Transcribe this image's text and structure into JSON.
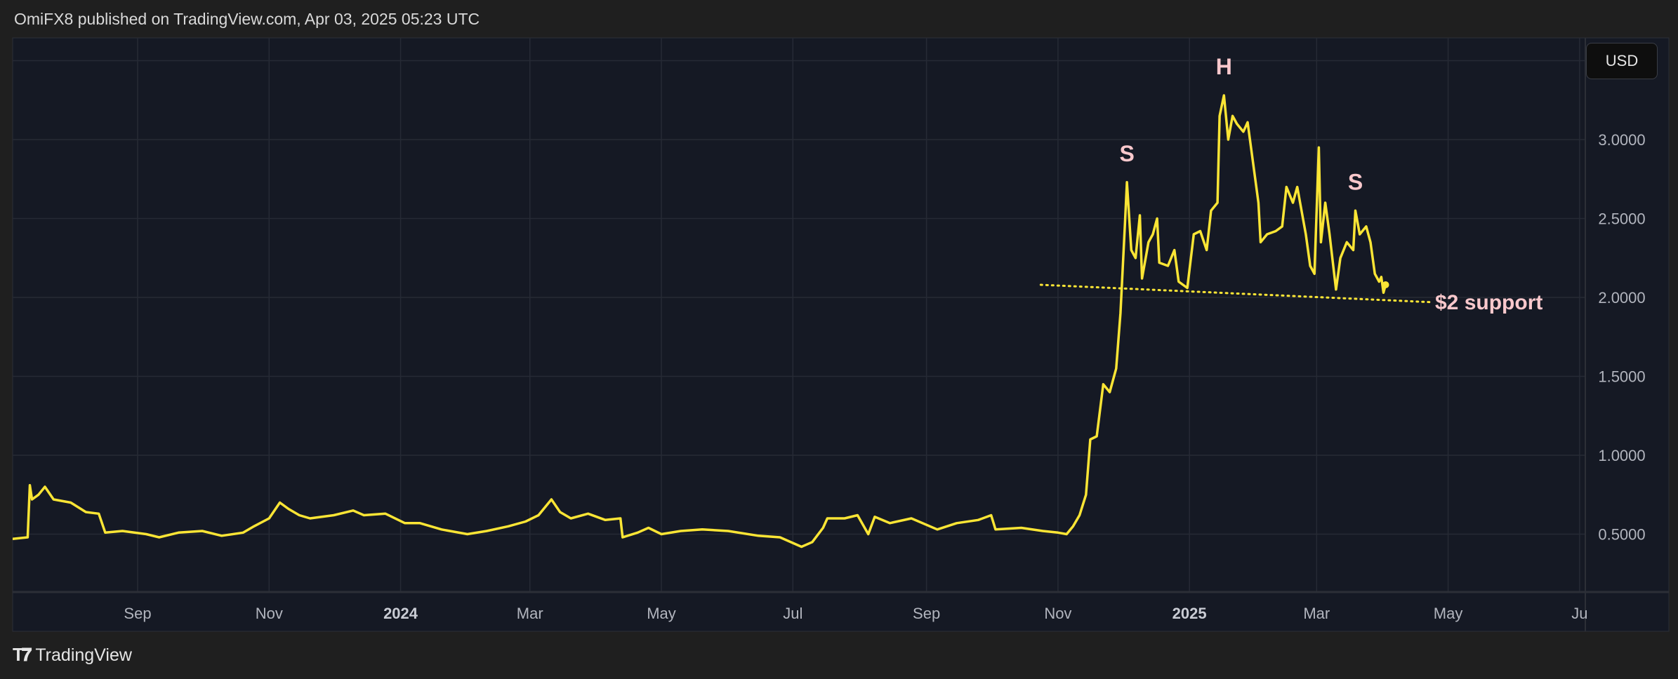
{
  "header": {
    "published": "OmiFX8 published on TradingView.com, Apr 03, 2025 05:23 UTC"
  },
  "currency_button": "USD",
  "footer": {
    "logo_mark": "TV",
    "brand": "TradingView"
  },
  "colors": {
    "line": "#fbe535",
    "annotation": "#f9c8cc",
    "background": "#151924",
    "grid": "#262a35"
  },
  "chart_data": {
    "type": "line",
    "title": "",
    "xlabel": "",
    "ylabel": "",
    "ylim": [
      0.15,
      3.5
    ],
    "y_ticks": [
      "3.0000",
      "2.5000",
      "2.0000",
      "1.5000",
      "1.0000",
      "0.5000"
    ],
    "y_tick_values": [
      3.0,
      2.5,
      2.0,
      1.5,
      1.0,
      0.5
    ],
    "x_ticks": [
      {
        "date": "2023-09-01",
        "label": "Sep",
        "bold": false
      },
      {
        "date": "2023-11-01",
        "label": "Nov",
        "bold": false
      },
      {
        "date": "2024-01-01",
        "label": "2024",
        "bold": true
      },
      {
        "date": "2024-03-01",
        "label": "Mar",
        "bold": false
      },
      {
        "date": "2024-05-01",
        "label": "May",
        "bold": false
      },
      {
        "date": "2024-07-01",
        "label": "Jul",
        "bold": false
      },
      {
        "date": "2024-09-01",
        "label": "Sep",
        "bold": false
      },
      {
        "date": "2024-11-01",
        "label": "Nov",
        "bold": false
      },
      {
        "date": "2025-01-01",
        "label": "2025",
        "bold": true
      },
      {
        "date": "2025-03-01",
        "label": "Mar",
        "bold": false
      },
      {
        "date": "2025-05-01",
        "label": "May",
        "bold": false
      },
      {
        "date": "2025-07-01",
        "label": "Ju",
        "bold": false
      }
    ],
    "grid": true,
    "series": [
      {
        "points": [
          [
            "2023-07-05",
            0.47
          ],
          [
            "2023-07-12",
            0.48
          ],
          [
            "2023-07-13",
            0.81
          ],
          [
            "2023-07-14",
            0.72
          ],
          [
            "2023-07-17",
            0.75
          ],
          [
            "2023-07-20",
            0.8
          ],
          [
            "2023-07-24",
            0.72
          ],
          [
            "2023-08-01",
            0.7
          ],
          [
            "2023-08-08",
            0.64
          ],
          [
            "2023-08-14",
            0.63
          ],
          [
            "2023-08-17",
            0.51
          ],
          [
            "2023-08-25",
            0.52
          ],
          [
            "2023-09-05",
            0.5
          ],
          [
            "2023-09-11",
            0.48
          ],
          [
            "2023-09-20",
            0.51
          ],
          [
            "2023-10-01",
            0.52
          ],
          [
            "2023-10-10",
            0.49
          ],
          [
            "2023-10-20",
            0.51
          ],
          [
            "2023-10-25",
            0.55
          ],
          [
            "2023-11-01",
            0.6
          ],
          [
            "2023-11-06",
            0.7
          ],
          [
            "2023-11-10",
            0.66
          ],
          [
            "2023-11-15",
            0.62
          ],
          [
            "2023-11-20",
            0.6
          ],
          [
            "2023-12-01",
            0.62
          ],
          [
            "2023-12-10",
            0.65
          ],
          [
            "2023-12-15",
            0.62
          ],
          [
            "2023-12-25",
            0.63
          ],
          [
            "2024-01-03",
            0.57
          ],
          [
            "2024-01-10",
            0.57
          ],
          [
            "2024-01-20",
            0.53
          ],
          [
            "2024-02-01",
            0.5
          ],
          [
            "2024-02-10",
            0.52
          ],
          [
            "2024-02-20",
            0.55
          ],
          [
            "2024-02-28",
            0.58
          ],
          [
            "2024-03-05",
            0.62
          ],
          [
            "2024-03-11",
            0.72
          ],
          [
            "2024-03-15",
            0.64
          ],
          [
            "2024-03-20",
            0.6
          ],
          [
            "2024-03-28",
            0.63
          ],
          [
            "2024-04-05",
            0.59
          ],
          [
            "2024-04-12",
            0.6
          ],
          [
            "2024-04-13",
            0.48
          ],
          [
            "2024-04-20",
            0.51
          ],
          [
            "2024-04-25",
            0.54
          ],
          [
            "2024-05-01",
            0.5
          ],
          [
            "2024-05-10",
            0.52
          ],
          [
            "2024-05-20",
            0.53
          ],
          [
            "2024-06-01",
            0.52
          ],
          [
            "2024-06-15",
            0.49
          ],
          [
            "2024-06-25",
            0.48
          ],
          [
            "2024-07-05",
            0.42
          ],
          [
            "2024-07-10",
            0.45
          ],
          [
            "2024-07-15",
            0.54
          ],
          [
            "2024-07-17",
            0.6
          ],
          [
            "2024-07-25",
            0.6
          ],
          [
            "2024-07-31",
            0.62
          ],
          [
            "2024-08-05",
            0.5
          ],
          [
            "2024-08-08",
            0.61
          ],
          [
            "2024-08-15",
            0.57
          ],
          [
            "2024-08-25",
            0.6
          ],
          [
            "2024-09-06",
            0.53
          ],
          [
            "2024-09-15",
            0.57
          ],
          [
            "2024-09-25",
            0.59
          ],
          [
            "2024-10-01",
            0.62
          ],
          [
            "2024-10-03",
            0.53
          ],
          [
            "2024-10-15",
            0.54
          ],
          [
            "2024-10-25",
            0.52
          ],
          [
            "2024-11-01",
            0.51
          ],
          [
            "2024-11-05",
            0.5
          ],
          [
            "2024-11-08",
            0.55
          ],
          [
            "2024-11-11",
            0.62
          ],
          [
            "2024-11-14",
            0.75
          ],
          [
            "2024-11-16",
            1.1
          ],
          [
            "2024-11-19",
            1.12
          ],
          [
            "2024-11-22",
            1.45
          ],
          [
            "2024-11-25",
            1.4
          ],
          [
            "2024-11-28",
            1.55
          ],
          [
            "2024-11-30",
            1.9
          ],
          [
            "2024-12-02",
            2.45
          ],
          [
            "2024-12-03",
            2.73
          ],
          [
            "2024-12-05",
            2.3
          ],
          [
            "2024-12-07",
            2.25
          ],
          [
            "2024-12-09",
            2.52
          ],
          [
            "2024-12-10",
            2.12
          ],
          [
            "2024-12-13",
            2.35
          ],
          [
            "2024-12-15",
            2.4
          ],
          [
            "2024-12-17",
            2.5
          ],
          [
            "2024-12-18",
            2.22
          ],
          [
            "2024-12-22",
            2.2
          ],
          [
            "2024-12-25",
            2.3
          ],
          [
            "2024-12-27",
            2.1
          ],
          [
            "2024-12-31",
            2.06
          ],
          [
            "2025-01-03",
            2.4
          ],
          [
            "2025-01-06",
            2.42
          ],
          [
            "2025-01-09",
            2.3
          ],
          [
            "2025-01-11",
            2.55
          ],
          [
            "2025-01-14",
            2.6
          ],
          [
            "2025-01-15",
            3.15
          ],
          [
            "2025-01-17",
            3.28
          ],
          [
            "2025-01-19",
            3.0
          ],
          [
            "2025-01-21",
            3.15
          ],
          [
            "2025-01-23",
            3.1
          ],
          [
            "2025-01-26",
            3.05
          ],
          [
            "2025-01-28",
            3.11
          ],
          [
            "2025-02-02",
            2.6
          ],
          [
            "2025-02-03",
            2.35
          ],
          [
            "2025-02-06",
            2.4
          ],
          [
            "2025-02-10",
            2.42
          ],
          [
            "2025-02-13",
            2.45
          ],
          [
            "2025-02-15",
            2.7
          ],
          [
            "2025-02-18",
            2.6
          ],
          [
            "2025-02-20",
            2.7
          ],
          [
            "2025-02-24",
            2.4
          ],
          [
            "2025-02-26",
            2.2
          ],
          [
            "2025-02-28",
            2.15
          ],
          [
            "2025-03-02",
            2.95
          ],
          [
            "2025-03-03",
            2.35
          ],
          [
            "2025-03-05",
            2.6
          ],
          [
            "2025-03-07",
            2.4
          ],
          [
            "2025-03-10",
            2.05
          ],
          [
            "2025-03-12",
            2.25
          ],
          [
            "2025-03-15",
            2.35
          ],
          [
            "2025-03-18",
            2.3
          ],
          [
            "2025-03-19",
            2.55
          ],
          [
            "2025-03-21",
            2.4
          ],
          [
            "2025-03-24",
            2.45
          ],
          [
            "2025-03-26",
            2.35
          ],
          [
            "2025-03-28",
            2.15
          ],
          [
            "2025-03-30",
            2.1
          ],
          [
            "2025-03-31",
            2.13
          ],
          [
            "2025-04-01",
            2.03
          ],
          [
            "2025-04-02",
            2.08
          ]
        ]
      }
    ],
    "annotations": [
      {
        "text": "S",
        "date": "2024-12-03",
        "price": 2.73
      },
      {
        "text": "H",
        "date": "2025-01-17",
        "price": 3.28
      },
      {
        "text": "S",
        "date": "2025-03-19",
        "price": 2.55
      }
    ],
    "support_line": {
      "label": "$2 support",
      "start": [
        "2024-10-24",
        2.08
      ],
      "end": [
        "2025-04-23",
        1.97
      ]
    }
  }
}
